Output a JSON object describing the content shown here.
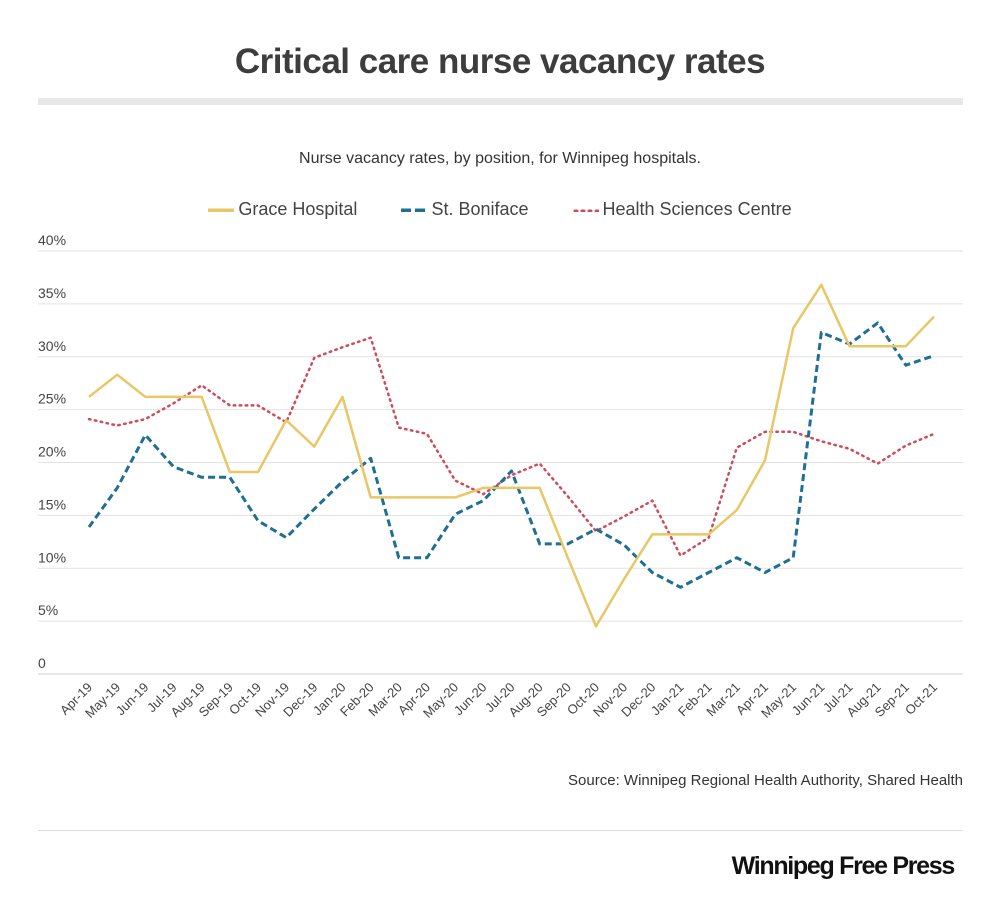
{
  "header": {
    "title": "Critical care nurse vacancy rates"
  },
  "footer": {
    "source": "Source: Winnipeg Regional Health Authority, Shared Health",
    "brand": "Winnipeg Free Press"
  },
  "chart_data": {
    "type": "line",
    "title": "Critical care nurse vacancy rates",
    "subtitle": "Nurse vacancy rates, by position, for Winnipeg hospitals.",
    "xlabel": "",
    "ylabel": "",
    "ylim": [
      0,
      40
    ],
    "yticks": [
      0,
      5,
      10,
      15,
      20,
      25,
      30,
      35,
      40
    ],
    "ytick_labels": [
      "0",
      "5%",
      "10%",
      "15%",
      "20%",
      "25%",
      "30%",
      "35%",
      "40%"
    ],
    "grid": true,
    "legend_position": "top-center",
    "categories": [
      "Apr-19",
      "May-19",
      "Jun-19",
      "Jul-19",
      "Aug-19",
      "Sep-19",
      "Oct-19",
      "Nov-19",
      "Dec-19",
      "Jan-20",
      "Feb-20",
      "Mar-20",
      "Apr-20",
      "May-20",
      "Jun-20",
      "Jul-20",
      "Aug-20",
      "Sep-20",
      "Oct-20",
      "Nov-20",
      "Dec-20",
      "Jan-21",
      "Feb-21",
      "Mar-21",
      "Apr-21",
      "May-21",
      "Jun-21",
      "Jul-21",
      "Aug-21",
      "Sep-21",
      "Oct-21"
    ],
    "series": [
      {
        "name": "Grace Hospital",
        "color": "#e8c766",
        "style": "solid",
        "values": [
          26.2,
          28.3,
          26.2,
          26.2,
          26.2,
          19.1,
          19.1,
          24.0,
          21.5,
          26.2,
          16.7,
          16.7,
          16.7,
          16.7,
          17.6,
          17.6,
          17.6,
          11.0,
          4.5,
          9.0,
          13.2,
          13.2,
          13.2,
          15.5,
          20.2,
          32.7,
          36.8,
          31.0,
          31.0,
          31.0,
          33.8
        ]
      },
      {
        "name": "St. Boniface",
        "color": "#1f6f93",
        "style": "dashed",
        "values": [
          13.9,
          17.6,
          22.6,
          19.6,
          18.6,
          18.6,
          14.5,
          12.9,
          15.6,
          18.2,
          20.4,
          11.0,
          11.0,
          15.1,
          16.4,
          19.2,
          12.3,
          12.3,
          13.7,
          12.2,
          9.6,
          8.2,
          9.6,
          11.0,
          9.6,
          11.0,
          32.3,
          31.2,
          33.2,
          29.2,
          30.1
        ]
      },
      {
        "name": "Health Sciences Centre",
        "color": "#cf4a5a",
        "style": "dotted",
        "values": [
          24.1,
          23.5,
          24.1,
          25.6,
          27.3,
          25.4,
          25.4,
          23.8,
          29.9,
          30.9,
          31.8,
          23.3,
          22.7,
          18.3,
          17.0,
          18.8,
          19.9,
          16.8,
          13.5,
          14.9,
          16.4,
          11.2,
          12.9,
          21.4,
          22.9,
          22.9,
          22.0,
          21.3,
          19.9,
          21.6,
          22.7
        ]
      }
    ]
  }
}
